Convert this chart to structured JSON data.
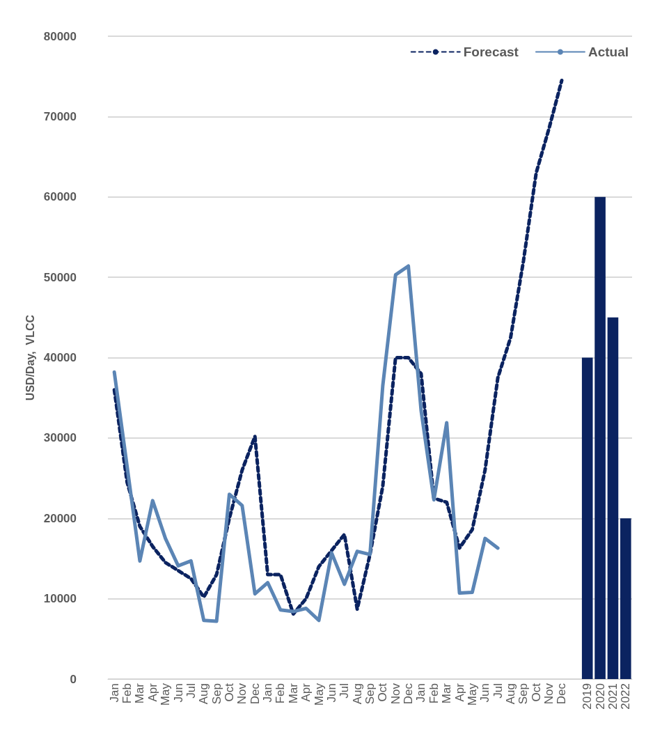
{
  "chart_data": {
    "type": "line",
    "ylabel": "USD/Day,  VLCC",
    "categories": [
      "Jan",
      "Feb",
      "Mar",
      "Apr",
      "May",
      "Jun",
      "Jul",
      "Aug",
      "Sep",
      "Oct",
      "Nov",
      "Dec",
      "Jan",
      "Feb",
      "Mar",
      "Apr",
      "May",
      "Jun",
      "Jul",
      "Aug",
      "Sep",
      "Oct",
      "Nov",
      "Dec",
      "Jan",
      "Feb",
      "Mar",
      "Apr",
      "May",
      "Jun",
      "Jul",
      "Aug",
      "Sep",
      "Oct",
      "Nov",
      "Dec",
      null,
      "2019",
      "2020",
      "2021",
      "2022"
    ],
    "series": [
      {
        "type": "bar",
        "color": "#0b2360",
        "values": [
          null,
          null,
          null,
          null,
          null,
          null,
          null,
          null,
          null,
          null,
          null,
          null,
          null,
          null,
          null,
          null,
          null,
          null,
          null,
          null,
          null,
          null,
          null,
          null,
          null,
          null,
          null,
          null,
          null,
          null,
          null,
          null,
          null,
          null,
          null,
          null,
          null,
          40000,
          60000,
          45000,
          20000
        ]
      },
      {
        "name": "Forecast",
        "color": "#0b2360",
        "line_style": "dashed",
        "values": [
          36000,
          24500,
          19000,
          16500,
          14500,
          13500,
          12500,
          10200,
          13000,
          20000,
          26000,
          30200,
          13000,
          13000,
          8100,
          10000,
          14000,
          16000,
          18000,
          8700,
          15500,
          24000,
          40000,
          40000,
          38000,
          22500,
          22000,
          16300,
          18600,
          26000,
          37500,
          42500,
          52000,
          63000,
          68500,
          74500,
          null,
          null,
          null,
          null,
          null
        ]
      },
      {
        "name": "Actual",
        "color": "#5b85b5",
        "line_style": "solid",
        "values": [
          38200,
          26500,
          14700,
          22200,
          17500,
          14100,
          14700,
          7300,
          7200,
          23000,
          21600,
          10600,
          12000,
          8600,
          8400,
          8800,
          7300,
          15700,
          11800,
          15900,
          15500,
          36500,
          50300,
          51400,
          33400,
          22300,
          31900,
          10700,
          10800,
          17500,
          16300,
          null,
          null,
          null,
          null,
          null,
          null,
          null,
          null,
          null,
          null
        ]
      }
    ],
    "ylim": [
      0,
      80000
    ],
    "yticks": [
      0,
      10000,
      20000,
      30000,
      40000,
      50000,
      60000,
      70000,
      80000
    ],
    "grid": "y",
    "legend": "top right",
    "marker": "none"
  }
}
